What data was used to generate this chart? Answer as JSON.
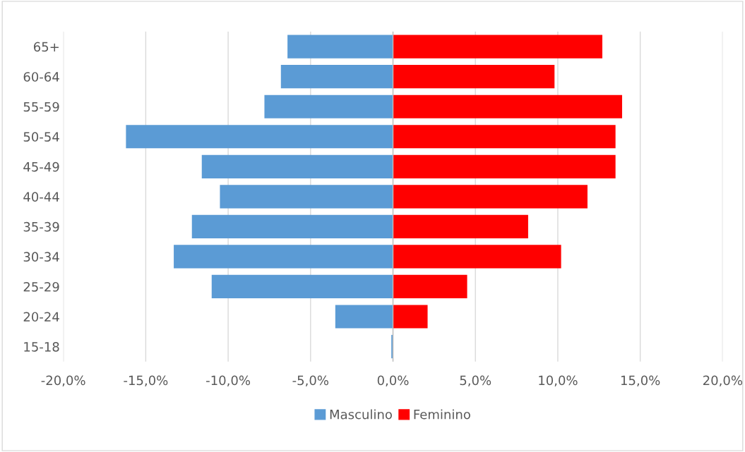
{
  "chart_data": {
    "type": "bar",
    "orientation": "horizontal",
    "stacked": true,
    "categories": [
      "65+",
      "60-64",
      "55-59",
      "50-54",
      "45-49",
      "40-44",
      "35-39",
      "30-34",
      "25-29",
      "20-24",
      "15-18"
    ],
    "series": [
      {
        "name": "Masculino",
        "color": "#5b9bd5",
        "values": [
          -6.4,
          -6.8,
          -7.8,
          -16.2,
          -11.6,
          -10.5,
          -12.2,
          -13.3,
          -11.0,
          -3.5,
          -0.1
        ]
      },
      {
        "name": "Feminino",
        "color": "#ff0000",
        "values": [
          12.7,
          9.8,
          13.9,
          13.5,
          13.5,
          11.8,
          8.2,
          10.2,
          4.5,
          2.1,
          0
        ]
      }
    ],
    "xlim": [
      -20,
      20
    ],
    "xticks": [
      {
        "value": -20,
        "label": "-20,0%"
      },
      {
        "value": -15,
        "label": "-15,0%"
      },
      {
        "value": -10,
        "label": "-10,0%"
      },
      {
        "value": -5,
        "label": "-5,0%"
      },
      {
        "value": 0,
        "label": "0,0%"
      },
      {
        "value": 5,
        "label": "5,0%"
      },
      {
        "value": 10,
        "label": "10,0%"
      },
      {
        "value": 15,
        "label": "15,0%"
      },
      {
        "value": 20,
        "label": "20,0%"
      }
    ],
    "grid": "x",
    "legend": "bottom"
  }
}
